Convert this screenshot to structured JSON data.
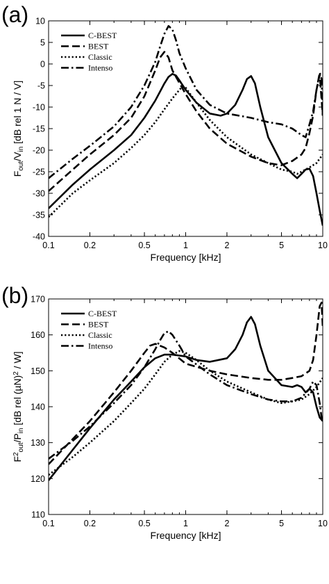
{
  "chart_data": [
    {
      "panel_label": "(a)",
      "type": "line",
      "x_scale": "log",
      "xlim": [
        0.1,
        10
      ],
      "ylim": [
        -40,
        10
      ],
      "xticks": [
        0.1,
        0.2,
        0.5,
        1,
        2,
        5,
        10
      ],
      "xtick_labels": [
        "0.1",
        "0.2",
        "0.5",
        "1",
        "2",
        "5",
        "10"
      ],
      "yticks": [
        -40,
        -35,
        -30,
        -25,
        -20,
        -15,
        -10,
        -5,
        0,
        5,
        10
      ],
      "ytick_labels": [
        "-40",
        "-35",
        "-30",
        "-25",
        "-20",
        "-15",
        "-10",
        "-5",
        "0",
        "5",
        "10"
      ],
      "xlabel": "Frequency [kHz]",
      "ylabel": {
        "pre": "F",
        "pre_sub": "out",
        "mid": "/V",
        "mid_sub": "in",
        "post": "  [dB rel 1 N / V]"
      },
      "legend_position": "top-left",
      "series": [
        {
          "name": "C-BEST",
          "dash": "solid",
          "x": [
            0.1,
            0.15,
            0.2,
            0.3,
            0.4,
            0.5,
            0.6,
            0.7,
            0.75,
            0.8,
            0.85,
            0.9,
            1.0,
            1.2,
            1.5,
            1.8,
            2.0,
            2.3,
            2.6,
            2.8,
            3.0,
            3.2,
            3.5,
            4.0,
            5.0,
            6.0,
            6.5,
            7.0,
            7.5,
            8.0,
            8.5,
            9.0,
            9.5,
            10.0
          ],
          "y": [
            -33.5,
            -28,
            -24.5,
            -20,
            -16.5,
            -12.5,
            -8.5,
            -4.5,
            -3,
            -2.3,
            -2.7,
            -3.8,
            -6,
            -9,
            -11.5,
            -12,
            -11.5,
            -9.5,
            -6,
            -3.5,
            -2.8,
            -4.5,
            -10,
            -17,
            -23,
            -25.5,
            -26.5,
            -25.5,
            -24.5,
            -24.3,
            -26,
            -30,
            -34,
            -37.5
          ]
        },
        {
          "name": "BEST",
          "dash": "dash",
          "x": [
            0.1,
            0.15,
            0.2,
            0.3,
            0.4,
            0.5,
            0.6,
            0.65,
            0.7,
            0.75,
            0.8,
            1.0,
            1.2,
            1.5,
            2.0,
            3.0,
            4.0,
            5.0,
            6.0,
            7.0,
            7.5,
            8.0,
            8.5,
            9.0,
            9.5,
            10.0
          ],
          "y": [
            -29.5,
            -24.5,
            -21,
            -16.5,
            -12.5,
            -7.5,
            -1.5,
            1.5,
            2.8,
            1.5,
            -1.5,
            -7,
            -11,
            -15,
            -18.5,
            -21.5,
            -23,
            -23.5,
            -22.5,
            -21,
            -19.5,
            -16,
            -12,
            -6,
            -2.5,
            -12
          ]
        },
        {
          "name": "Classic",
          "dash": "dot",
          "x": [
            0.1,
            0.15,
            0.2,
            0.3,
            0.4,
            0.5,
            0.6,
            0.7,
            0.8,
            0.9,
            0.95,
            1.0,
            1.2,
            1.5,
            2.0,
            3.0,
            4.0,
            5.0,
            6.0,
            6.5,
            7.0,
            8.0,
            9.0,
            10.0
          ],
          "y": [
            -35.5,
            -30,
            -27,
            -23,
            -19.5,
            -16.5,
            -13.5,
            -10.5,
            -8,
            -6,
            -5.2,
            -5.5,
            -9,
            -13,
            -17,
            -21,
            -23,
            -24.5,
            -25,
            -25.5,
            -25,
            -24,
            -23,
            -21
          ]
        },
        {
          "name": "Intenso",
          "dash": "dashdot",
          "x": [
            0.1,
            0.15,
            0.2,
            0.3,
            0.4,
            0.5,
            0.6,
            0.65,
            0.7,
            0.75,
            0.8,
            0.85,
            0.9,
            1.0,
            1.2,
            1.5,
            2.0,
            3.0,
            4.0,
            5.0,
            6.0,
            7.0,
            7.5,
            8.0,
            8.5,
            9.0,
            9.5,
            9.8,
            10.0
          ],
          "y": [
            -26.5,
            -22,
            -19,
            -14.5,
            -10,
            -5,
            0.5,
            4,
            7,
            8.8,
            8,
            5.5,
            2.5,
            -1,
            -6,
            -9.5,
            -11.5,
            -12.5,
            -13.5,
            -14,
            -15,
            -16.5,
            -17,
            -14,
            -11,
            -6,
            -2,
            -3.5,
            -12
          ]
        }
      ]
    },
    {
      "panel_label": "(b)",
      "type": "line",
      "x_scale": "log",
      "xlim": [
        0.1,
        10
      ],
      "ylim": [
        110,
        170
      ],
      "xticks": [
        0.1,
        0.2,
        0.5,
        1,
        2,
        5,
        10
      ],
      "xtick_labels": [
        "0.1",
        "0.2",
        "0.5",
        "1",
        "2",
        "5",
        "10"
      ],
      "yticks": [
        110,
        120,
        130,
        140,
        150,
        160,
        170
      ],
      "ytick_labels": [
        "110",
        "120",
        "130",
        "140",
        "150",
        "160",
        "170"
      ],
      "xlabel": "Frequency [kHz]",
      "ylabel": {
        "pre": "F",
        "pre_sup": "2",
        "pre_sub": "out",
        "mid": "/P",
        "mid_sub": "in",
        "post": "  [dB rel (µN)",
        "post_sup": "2",
        "tail": " / W]"
      },
      "legend_position": "top-left",
      "series": [
        {
          "name": "C-BEST",
          "dash": "solid",
          "x": [
            0.1,
            0.15,
            0.2,
            0.3,
            0.4,
            0.5,
            0.6,
            0.7,
            0.8,
            1.0,
            1.2,
            1.5,
            2.0,
            2.3,
            2.6,
            2.8,
            3.0,
            3.2,
            3.5,
            4.0,
            5.0,
            6.0,
            6.5,
            7.0,
            7.5,
            8.0,
            8.5,
            9.0,
            9.5,
            10.0
          ],
          "y": [
            119.5,
            128,
            134,
            142,
            147,
            151,
            153.5,
            154.5,
            154.5,
            154,
            153,
            152.5,
            153.5,
            156,
            160,
            163.5,
            165,
            163,
            157,
            150,
            146,
            145.5,
            146,
            145.5,
            144,
            145,
            144,
            140,
            137,
            136
          ]
        },
        {
          "name": "BEST",
          "dash": "dash",
          "x": [
            0.1,
            0.15,
            0.2,
            0.3,
            0.4,
            0.5,
            0.55,
            0.6,
            0.7,
            0.8,
            1.0,
            1.5,
            2.0,
            3.0,
            4.0,
            5.0,
            6.0,
            7.0,
            8.0,
            8.5,
            9.0,
            9.5,
            9.8,
            10.0
          ],
          "y": [
            124,
            131,
            136,
            144,
            150,
            155,
            157,
            157.5,
            156.5,
            155,
            152,
            150,
            149,
            148,
            147.5,
            147.5,
            148,
            148.5,
            150,
            153,
            160,
            168,
            169,
            162
          ]
        },
        {
          "name": "Classic",
          "dash": "dot",
          "x": [
            0.1,
            0.15,
            0.2,
            0.3,
            0.4,
            0.5,
            0.6,
            0.7,
            0.8,
            0.9,
            1.0,
            1.2,
            1.5,
            2.0,
            3.0,
            4.0,
            5.0,
            6.0,
            7.0,
            8.0,
            9.0,
            10.0
          ],
          "y": [
            121,
            126,
            130,
            136,
            141,
            145,
            149,
            152.5,
            154.5,
            155.5,
            155,
            153,
            150,
            147,
            144,
            142,
            141,
            141.5,
            142,
            143.5,
            145.5,
            148
          ]
        },
        {
          "name": "Intenso",
          "dash": "dashdot",
          "x": [
            0.1,
            0.15,
            0.2,
            0.3,
            0.4,
            0.5,
            0.6,
            0.65,
            0.7,
            0.75,
            0.8,
            0.9,
            1.0,
            1.5,
            2.0,
            3.0,
            4.0,
            5.0,
            6.0,
            7.0,
            8.0,
            8.5,
            9.0,
            9.5,
            9.8,
            10.0
          ],
          "y": [
            125.5,
            130.5,
            134.5,
            141,
            146,
            151,
            156,
            158.5,
            160.5,
            161,
            160,
            157,
            154,
            149,
            146,
            143.5,
            142,
            141.5,
            141.5,
            142.5,
            145,
            147,
            146,
            141,
            137,
            136
          ]
        }
      ]
    }
  ]
}
